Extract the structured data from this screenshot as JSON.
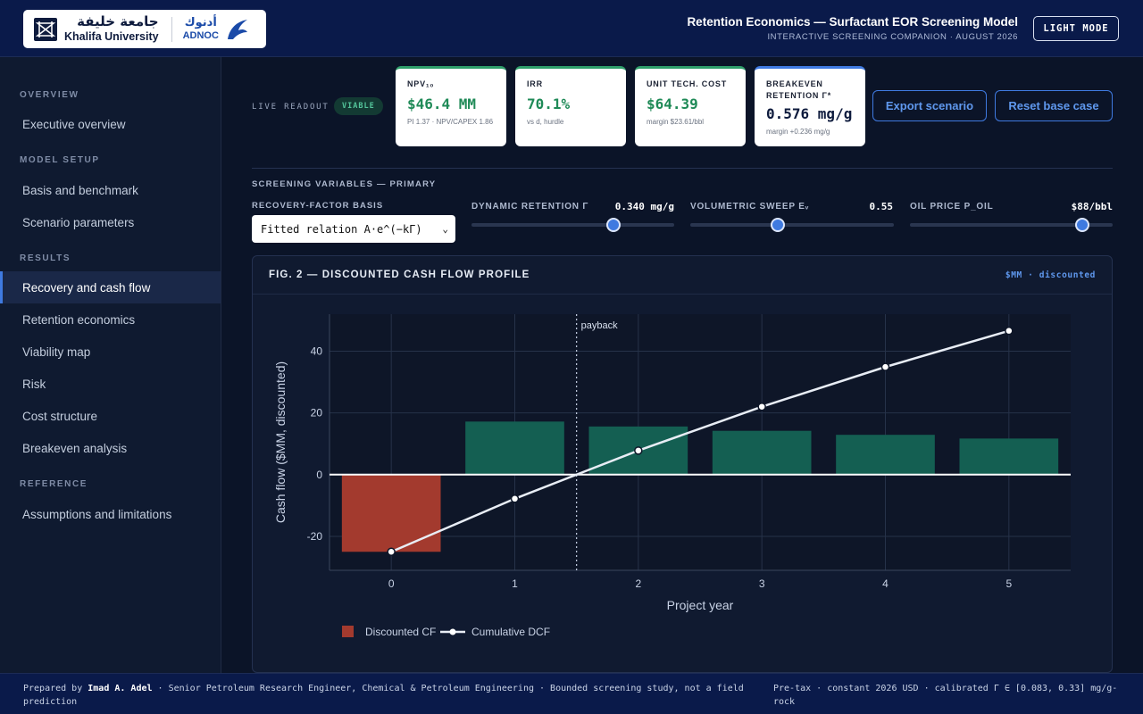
{
  "header": {
    "ku_arabic": "جامعة خليفة",
    "ku_english": "Khalifa University",
    "adnoc_arabic": "أدنوك",
    "adnoc_english": "ADNOC",
    "title": "Retention Economics — Surfactant EOR Screening Model",
    "subtitle": "INTERACTIVE SCREENING COMPANION · AUGUST 2026",
    "theme_button": "LIGHT MODE"
  },
  "sidebar": {
    "sections": [
      {
        "label": "OVERVIEW",
        "items": [
          {
            "label": "Executive overview"
          }
        ]
      },
      {
        "label": "MODEL SETUP",
        "items": [
          {
            "label": "Basis and benchmark"
          },
          {
            "label": "Scenario parameters"
          }
        ]
      },
      {
        "label": "RESULTS",
        "items": [
          {
            "label": "Recovery and cash flow",
            "active": true
          },
          {
            "label": "Retention economics"
          },
          {
            "label": "Viability map"
          },
          {
            "label": "Risk"
          },
          {
            "label": "Cost structure"
          },
          {
            "label": "Breakeven analysis"
          }
        ]
      },
      {
        "label": "REFERENCE",
        "items": [
          {
            "label": "Assumptions and limitations"
          }
        ]
      }
    ]
  },
  "readout": {
    "label": "LIVE READOUT",
    "status": "VIABLE",
    "kpis": [
      {
        "label": "NPV₁₀",
        "value": "$46.4 MM",
        "sub": "PI 1.37 · NPV/CAPEX 1.86"
      },
      {
        "label": "IRR",
        "value": "70.1%",
        "sub": "vs d, hurdle"
      },
      {
        "label": "UNIT TECH. COST",
        "value": "$64.39",
        "sub": "margin $23.61/bbl"
      },
      {
        "label": "BREAKEVEN RETENTION Γ*",
        "value": "0.576 mg/g",
        "sub": "margin +0.236 mg/g"
      }
    ],
    "export_button": "Export scenario",
    "reset_button": "Reset base case"
  },
  "controls": {
    "section_title": "SCREENING VARIABLES — PRIMARY",
    "rf_label": "RECOVERY-FACTOR BASIS",
    "rf_selected": "Fitted relation A·e^(−kΓ)",
    "sliders": [
      {
        "label": "DYNAMIC RETENTION Γ",
        "value": "0.340 mg/g",
        "level": 0.7
      },
      {
        "label": "VOLUMETRIC SWEEP Eᵥ",
        "value": "0.55",
        "level": 0.43
      },
      {
        "label": "OIL PRICE P_OIL",
        "value": "$88/bbl",
        "level": 0.85
      }
    ]
  },
  "figure": {
    "title": "FIG. 2 — DISCOUNTED CASH FLOW PROFILE",
    "unit": "$MM · discounted"
  },
  "chart_data": {
    "type": "bar",
    "categories": [
      "0",
      "1",
      "2",
      "3",
      "4",
      "5"
    ],
    "series": [
      {
        "name": "Discounted CF",
        "type": "bar",
        "values": [
          -25.0,
          17.2,
          15.6,
          14.2,
          12.9,
          11.7
        ],
        "color": "#a33a2e",
        "positive_color": "#145f52"
      },
      {
        "name": "Cumulative DCF",
        "type": "line",
        "values": [
          -25.0,
          -7.8,
          7.8,
          22.0,
          34.9,
          46.6
        ],
        "color": "#e8edf5"
      }
    ],
    "xlabel": "Project year",
    "ylabel": "Cash flow ($MM, discounted)",
    "ylim": [
      -31,
      52
    ],
    "yticks": [
      -20,
      0,
      20,
      40
    ],
    "annotation": {
      "text": "payback",
      "x": 1.5
    },
    "grid": true,
    "legend": "bottom-left"
  },
  "footer": {
    "prefix": "Prepared by",
    "author": "Imad A. Adel",
    "role": "· Senior Petroleum Research Engineer, Chemical & Petroleum Engineering · Bounded screening study, not a field prediction",
    "right": "Pre-tax · constant 2026 USD · calibrated Γ ∈ [0.083, 0.33] mg/g-rock"
  }
}
